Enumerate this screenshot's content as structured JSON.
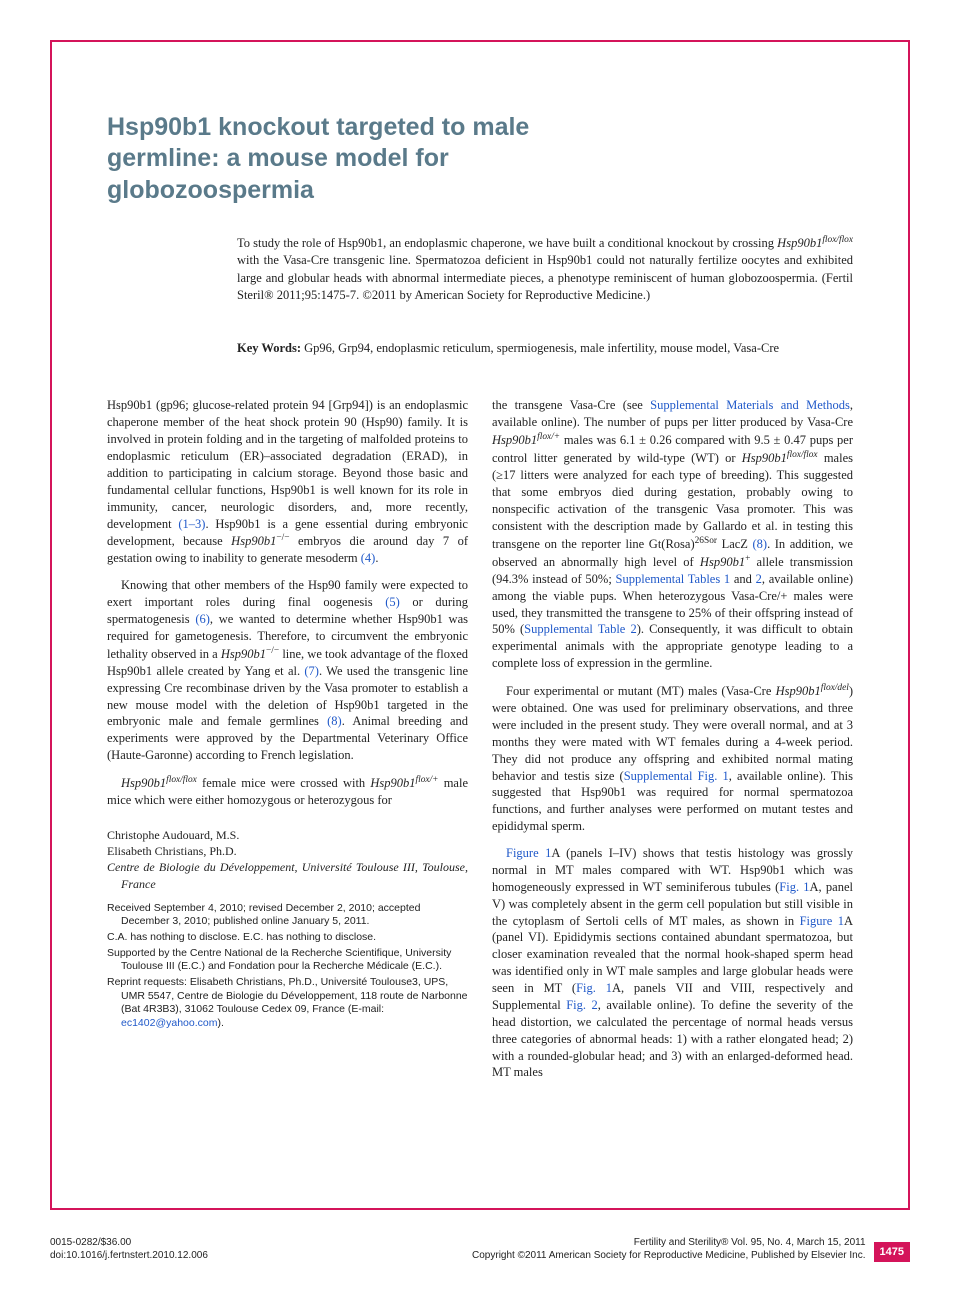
{
  "title": "Hsp90b1 knockout targeted to male germline: a mouse model for globozoospermia",
  "abstract": "To study the role of Hsp90b1, an endoplasmic chaperone, we have built a conditional knockout by crossing Hsp90b1flox/flox with the Vasa-Cre transgenic line. Spermatozoa deficient in Hsp90b1 could not naturally fertilize oocytes and exhibited large and globular heads with abnormal intermediate pieces, a phenotype reminiscent of human globozoospermia. (Fertil Steril® 2011;95:1475-7. ©2011 by American Society for Reproductive Medicine.)",
  "keywords_label": "Key Words:",
  "keywords": "Gp96, Grp94, endoplasmic reticulum, spermiogenesis, male infertility, mouse model, Vasa-Cre",
  "left_col": {
    "p1a": "Hsp90b1 (gp96; glucose-related protein 94 [Grp94]) is an endoplasmic chaperone member of the heat shock protein 90 (Hsp90) family. It is involved in protein folding and in the targeting of malfolded proteins to endoplasmic reticulum (ER)–associated degradation (ERAD), in addition to participating in calcium storage. Beyond those basic and fundamental cellular functions, Hsp90b1 is well known for its role in immunity, cancer, neurologic disorders, and, more recently, development ",
    "ref1": "(1–3)",
    "p1b": ". Hsp90b1 is a gene essential during embryonic development, because ",
    "italic1": "Hsp90b1",
    "sup1": "−/−",
    "p1c": " embryos die around day 7 of gestation owing to inability to generate mesoderm ",
    "ref2": "(4)",
    "p1d": ".",
    "p2a": "Knowing that other members of the Hsp90 family were expected to exert important roles during final oogenesis ",
    "ref3": "(5)",
    "p2b": " or during spermatogenesis ",
    "ref4": "(6)",
    "p2c": ", we wanted to determine whether Hsp90b1 was required for gametogenesis. Therefore, to circumvent the embryonic lethality observed in a ",
    "italic2": "Hsp90b1",
    "sup2": "−/−",
    "p2d": " line, we took advantage of the floxed Hsp90b1 allele created by Yang et al. ",
    "ref5": "(7)",
    "p2e": ". We used the transgenic line expressing Cre recombinase driven by the Vasa promoter to establish a new mouse model with the deletion of Hsp90b1 targeted in the embryonic male and female germlines ",
    "ref6": "(8)",
    "p2f": ". Animal breeding and experiments were approved by the Departmental Veterinary Office (Haute-Garonne) according to French legislation.",
    "p3a_italic": "Hsp90b1",
    "p3a_sup": "flox/flox",
    "p3b": " female mice were crossed with ",
    "p3c_italic": "Hsp90b1",
    "p3c_sup": "flox/+",
    "p3d": " male mice which were either homozygous or heterozygous for"
  },
  "authors": {
    "a1": "Christophe Audouard, M.S.",
    "a2": "Elisabeth Christians, Ph.D.",
    "affil": "Centre de Biologie du Développement, Université Toulouse III, Toulouse, France"
  },
  "meta": {
    "m1": "Received September 4, 2010; revised December 2, 2010; accepted December 3, 2010; published online January 5, 2011.",
    "m2": "C.A. has nothing to disclose. E.C. has nothing to disclose.",
    "m3": "Supported by the Centre National de la Recherche Scientifique, University Toulouse III (E.C.) and Fondation pour la Recherche Médicale (E.C.).",
    "m4a": "Reprint requests: Elisabeth Christians, Ph.D., Université Toulouse3, UPS, UMR 5547, Centre de Biologie du Développement, 118 route de Narbonne (Bat 4R3B3), 31062 Toulouse Cedex 09, France (E-mail: ",
    "email": "ec1402@yahoo.com",
    "m4b": ")."
  },
  "right_col": {
    "p1a": "the transgene Vasa-Cre (see ",
    "link1": "Supplemental Materials and Methods",
    "p1b": ", available online). The number of pups per litter produced by Vasa-Cre ",
    "italic1": "Hsp90b1",
    "sup1": "flox/+",
    "p1c": " males was 6.1 ± 0.26 compared with 9.5 ± 0.47 pups per control litter generated by wild-type (WT) or ",
    "italic2": "Hsp90b1",
    "sup2": "flox/flox",
    "p1d": " males (≥17 litters were analyzed for each type of breeding). This suggested that some embryos died during gestation, probably owing to nonspecific activation of the transgenic Vasa promoter. This was consistent with the description made by Gallardo et al. in testing this transgene on the reporter line Gt(Rosa)",
    "sup3": "26Sor",
    "p1e": " LacZ ",
    "ref1": "(8)",
    "p1f": ". In addition, we observed an abnormally high level of ",
    "italic3": "Hsp90b1",
    "sup4": "+",
    "p1g": " allele transmission (94.3% instead of 50%; ",
    "link2": "Supplemental Tables 1",
    "p1h": " and ",
    "link3": "2",
    "p1i": ", available online) among the viable pups. When heterozygous Vasa-Cre/+ males were used, they transmitted the transgene to 25% of their offspring instead of 50% (",
    "link4": "Supplemental Table 2",
    "p1j": "). Consequently, it was difficult to obtain experimental animals with the appropriate genotype leading to a complete loss of expression in the germline.",
    "p2a": "Four experimental or mutant (MT) males (Vasa-Cre ",
    "italic4": "Hsp90b1",
    "sup5": "flox/del",
    "p2b": ") were obtained. One was used for preliminary observations, and three were included in the present study. They were overall normal, and at 3 months they were mated with WT females during a 4-week period. They did not produce any offspring and exhibited normal mating behavior and testis size (",
    "link5": "Supplemental Fig. 1",
    "p2c": ", available online). This suggested that Hsp90b1 was required for normal spermatozoa functions, and further analyses were performed on mutant testes and epididymal sperm.",
    "p3a_link": "Figure 1",
    "p3a": "A (panels I–IV) shows that testis histology was grossly normal in MT males compared with WT. Hsp90b1 which was homogeneously expressed in WT seminiferous tubules (",
    "link6": "Fig. 1",
    "p3b": "A, panel V) was completely absent in the germ cell population but still visible in the cytoplasm of Sertoli cells of MT males, as shown in ",
    "link7": "Figure 1",
    "p3c": "A (panel VI). Epididymis sections contained abundant spermatozoa, but closer examination revealed that the normal hook-shaped sperm head was identified only in WT male samples and large globular heads were seen in MT (",
    "link8": "Fig. 1",
    "p3d": "A, panels VII and VIII, respectively and Supplemental ",
    "link9": "Fig. 2",
    "p3e": ", available online). To define the severity of the head distortion, we calculated the percentage of normal heads versus three categories of abnormal heads: 1) with a rather elongated head; 2) with a rounded-globular head; and 3) with an enlarged-deformed head. MT males"
  },
  "footer": {
    "left1": "0015-0282/$36.00",
    "left2": "doi:10.1016/j.fertnstert.2010.12.006",
    "right1": "Fertility and Sterility® Vol. 95, No. 4, March 15, 2011",
    "right2": "Copyright ©2011 American Society for Reproductive Medicine, Published by Elsevier Inc.",
    "page": "1475"
  },
  "colors": {
    "border": "#d4145a",
    "title": "#5a7a8a",
    "link": "#2059c9",
    "pagenum_bg": "#d4145a"
  }
}
